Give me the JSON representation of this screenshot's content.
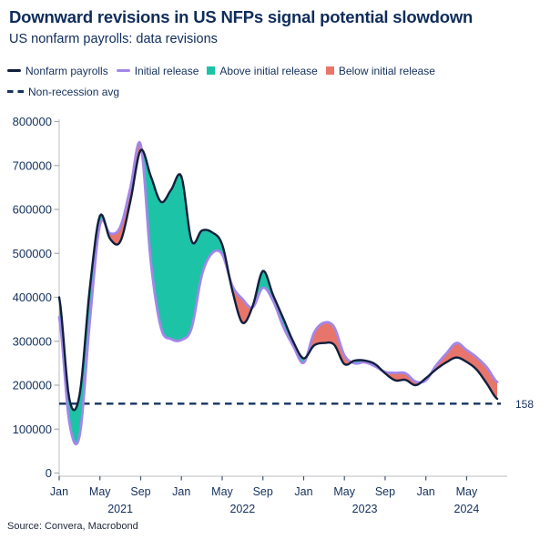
{
  "header": {
    "title": "Downward revisions in US NFPs signal potential slowdown",
    "subtitle": "US nonfarm payrolls: data revisions"
  },
  "legend": {
    "items": [
      {
        "label": "Nonfarm payrolls",
        "swatch": "line",
        "color": "#111f3c"
      },
      {
        "label": "Initial release",
        "swatch": "line",
        "color": "#a287e8"
      },
      {
        "label": "Above initial release",
        "swatch": "square",
        "color": "#1cc3a7"
      },
      {
        "label": "Below initial release",
        "swatch": "square",
        "color": "#e8756b"
      },
      {
        "label": "Non-recession avg",
        "swatch": "dashed",
        "color": "#16335f"
      }
    ]
  },
  "footer": {
    "source": "Source: Convera, Macrobond"
  },
  "colors": {
    "text": "#14305c",
    "payrolls_line": "#111f3c",
    "initial_line": "#a287e8",
    "above_fill": "#1cc3a7",
    "below_fill": "#e8756b",
    "avg_line": "#16335f",
    "axis": "#b9bcc2",
    "x_tick": "#44536e",
    "y_tick": "#a9adb3"
  },
  "chart_data": {
    "type": "line",
    "title": "US nonfarm payrolls: data revisions",
    "x": [
      "2021-01",
      "2021-02",
      "2021-03",
      "2021-04",
      "2021-05",
      "2021-06",
      "2021-07",
      "2021-08",
      "2021-09",
      "2021-10",
      "2021-11",
      "2021-12",
      "2022-01",
      "2022-02",
      "2022-03",
      "2022-04",
      "2022-05",
      "2022-06",
      "2022-07",
      "2022-08",
      "2022-09",
      "2022-10",
      "2022-11",
      "2022-12",
      "2023-01",
      "2023-02",
      "2023-03",
      "2023-04",
      "2023-05",
      "2023-06",
      "2023-07",
      "2023-08",
      "2023-09",
      "2023-10",
      "2023-11",
      "2023-12",
      "2024-01",
      "2024-02",
      "2024-03",
      "2024-04",
      "2024-05",
      "2024-06",
      "2024-07",
      "2024-08"
    ],
    "series": [
      {
        "name": "Nonfarm payrolls",
        "color": "#111f3c",
        "values": [
          400000,
          168000,
          178000,
          420000,
          585000,
          533000,
          527000,
          620000,
          735000,
          675000,
          617000,
          645000,
          675000,
          528000,
          552000,
          548000,
          520000,
          415000,
          342000,
          380000,
          460000,
          405000,
          352000,
          298000,
          261000,
          290000,
          296000,
          292000,
          248000,
          256000,
          256000,
          248000,
          227000,
          211000,
          212000,
          200000,
          216000,
          236000,
          252000,
          263000,
          253000,
          235000,
          203000,
          169000
        ]
      },
      {
        "name": "Initial release",
        "color": "#a287e8",
        "values": [
          355000,
          115000,
          85000,
          345000,
          565000,
          545000,
          560000,
          650000,
          748000,
          480000,
          330000,
          305000,
          303000,
          330000,
          450000,
          500000,
          498000,
          426000,
          396000,
          377000,
          422000,
          392000,
          333000,
          288000,
          251000,
          318000,
          342000,
          332000,
          268000,
          250000,
          252000,
          243000,
          230000,
          228000,
          227000,
          208000,
          211000,
          245000,
          272000,
          296000,
          280000,
          263000,
          240000,
          207000
        ]
      }
    ],
    "fill_between": {
      "above_label": "Above initial release",
      "above_color": "#1cc3a7",
      "below_label": "Below initial release",
      "below_color": "#e8756b"
    },
    "avg_line": {
      "name": "Non-recession avg",
      "value": 158000,
      "label": "158",
      "style": "dashed"
    },
    "ylim": [
      0,
      800000
    ],
    "y_ticks": [
      0,
      100000,
      200000,
      300000,
      400000,
      500000,
      600000,
      700000,
      800000
    ],
    "x_ticks": [
      {
        "index": 0,
        "label": "Jan"
      },
      {
        "index": 4,
        "label": "May"
      },
      {
        "index": 8,
        "label": "Sep"
      },
      {
        "index": 12,
        "label": "Jan"
      },
      {
        "index": 16,
        "label": "May"
      },
      {
        "index": 20,
        "label": "Sep"
      },
      {
        "index": 24,
        "label": "Jan"
      },
      {
        "index": 28,
        "label": "May"
      },
      {
        "index": 32,
        "label": "Sep"
      },
      {
        "index": 36,
        "label": "Jan"
      },
      {
        "index": 40,
        "label": "May"
      }
    ],
    "year_labels": [
      {
        "label": "2021",
        "index": 6
      },
      {
        "label": "2022",
        "index": 18
      },
      {
        "label": "2023",
        "index": 30
      },
      {
        "label": "2024",
        "index": 40
      }
    ],
    "grid": false,
    "legend_position": "top"
  }
}
